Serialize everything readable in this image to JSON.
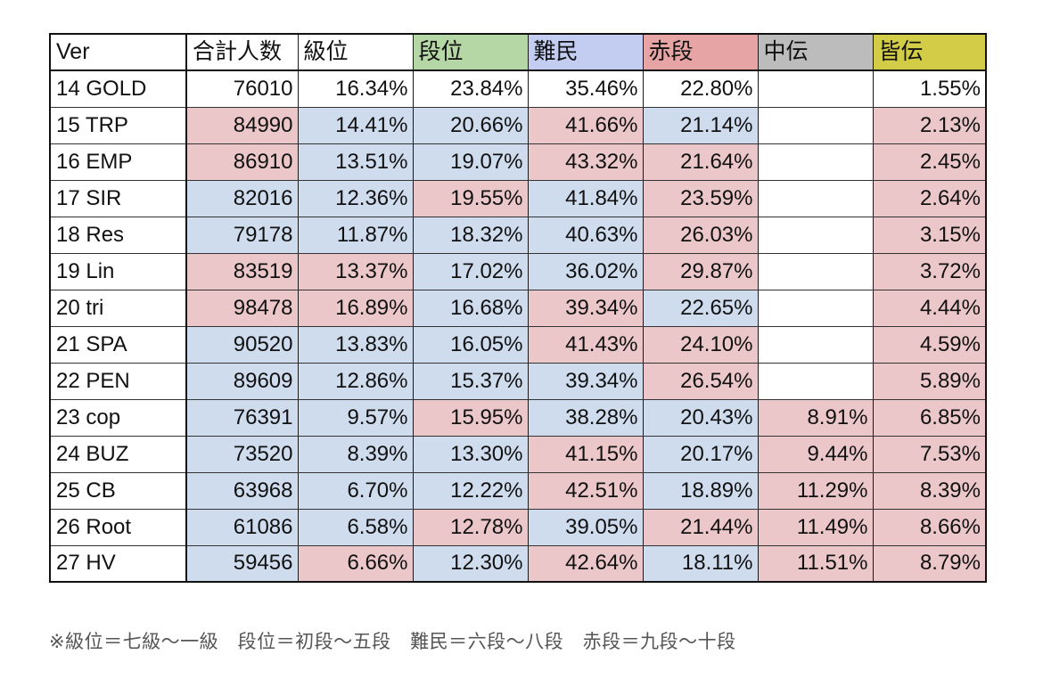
{
  "table": {
    "headers": [
      "Ver",
      "合計人数",
      "級位",
      "段位",
      "難民",
      "赤段",
      "中伝",
      "皆伝"
    ],
    "header_colors": [
      "#ffffff",
      "#ffffff",
      "#ffffff",
      "#b5d6a5",
      "#c2cdf1",
      "#e7a4a5",
      "#bcbcbc",
      "#d2cc46"
    ],
    "cell_colors": {
      "p": "#ebc7c9",
      "b": "#cfdcee",
      "w": "#ffffff"
    },
    "rows": [
      {
        "cells": [
          "14 GOLD",
          "76010",
          "16.34%",
          "23.84%",
          "35.46%",
          "22.80%",
          "",
          "1.55%"
        ],
        "shading": [
          "w",
          "w",
          "w",
          "w",
          "w",
          "w",
          "w",
          "w"
        ]
      },
      {
        "cells": [
          "15 TRP",
          "84990",
          "14.41%",
          "20.66%",
          "41.66%",
          "21.14%",
          "",
          "2.13%"
        ],
        "shading": [
          "w",
          "p",
          "b",
          "b",
          "p",
          "b",
          "w",
          "p"
        ]
      },
      {
        "cells": [
          "16 EMP",
          "86910",
          "13.51%",
          "19.07%",
          "43.32%",
          "21.64%",
          "",
          "2.45%"
        ],
        "shading": [
          "w",
          "p",
          "b",
          "b",
          "p",
          "p",
          "w",
          "p"
        ]
      },
      {
        "cells": [
          "17 SIR",
          "82016",
          "12.36%",
          "19.55%",
          "41.84%",
          "23.59%",
          "",
          "2.64%"
        ],
        "shading": [
          "w",
          "b",
          "b",
          "p",
          "b",
          "p",
          "w",
          "p"
        ]
      },
      {
        "cells": [
          "18 Res",
          "79178",
          "11.87%",
          "18.32%",
          "40.63%",
          "26.03%",
          "",
          "3.15%"
        ],
        "shading": [
          "w",
          "b",
          "b",
          "b",
          "b",
          "p",
          "w",
          "p"
        ]
      },
      {
        "cells": [
          "19 Lin",
          "83519",
          "13.37%",
          "17.02%",
          "36.02%",
          "29.87%",
          "",
          "3.72%"
        ],
        "shading": [
          "w",
          "p",
          "p",
          "b",
          "b",
          "p",
          "w",
          "p"
        ]
      },
      {
        "cells": [
          "20 tri",
          "98478",
          "16.89%",
          "16.68%",
          "39.34%",
          "22.65%",
          "",
          "4.44%"
        ],
        "shading": [
          "w",
          "p",
          "p",
          "b",
          "p",
          "b",
          "w",
          "p"
        ]
      },
      {
        "cells": [
          "21 SPA",
          "90520",
          "13.83%",
          "16.05%",
          "41.43%",
          "24.10%",
          "",
          "4.59%"
        ],
        "shading": [
          "w",
          "b",
          "b",
          "b",
          "p",
          "p",
          "w",
          "p"
        ]
      },
      {
        "cells": [
          "22 PEN",
          "89609",
          "12.86%",
          "15.37%",
          "39.34%",
          "26.54%",
          "",
          "5.89%"
        ],
        "shading": [
          "w",
          "b",
          "b",
          "b",
          "b",
          "p",
          "w",
          "p"
        ]
      },
      {
        "cells": [
          "23 cop",
          "76391",
          "9.57%",
          "15.95%",
          "38.28%",
          "20.43%",
          "8.91%",
          "6.85%"
        ],
        "shading": [
          "w",
          "b",
          "b",
          "p",
          "b",
          "b",
          "p",
          "p"
        ]
      },
      {
        "cells": [
          "24 BUZ",
          "73520",
          "8.39%",
          "13.30%",
          "41.15%",
          "20.17%",
          "9.44%",
          "7.53%"
        ],
        "shading": [
          "w",
          "b",
          "b",
          "b",
          "p",
          "b",
          "p",
          "p"
        ]
      },
      {
        "cells": [
          "25 CB",
          "63968",
          "6.70%",
          "12.22%",
          "42.51%",
          "18.89%",
          "11.29%",
          "8.39%"
        ],
        "shading": [
          "w",
          "b",
          "b",
          "b",
          "p",
          "b",
          "p",
          "p"
        ]
      },
      {
        "cells": [
          "26 Root",
          "61086",
          "6.58%",
          "12.78%",
          "39.05%",
          "21.44%",
          "11.49%",
          "8.66%"
        ],
        "shading": [
          "w",
          "b",
          "b",
          "p",
          "b",
          "p",
          "p",
          "p"
        ]
      },
      {
        "cells": [
          "27 HV",
          "59456",
          "6.66%",
          "12.30%",
          "42.64%",
          "18.11%",
          "11.51%",
          "8.79%"
        ],
        "shading": [
          "w",
          "b",
          "p",
          "b",
          "p",
          "b",
          "p",
          "p"
        ]
      }
    ]
  },
  "footnote": "※級位＝七級〜一級　段位＝初段〜五段　難民＝六段〜八段　赤段＝九段〜十段"
}
